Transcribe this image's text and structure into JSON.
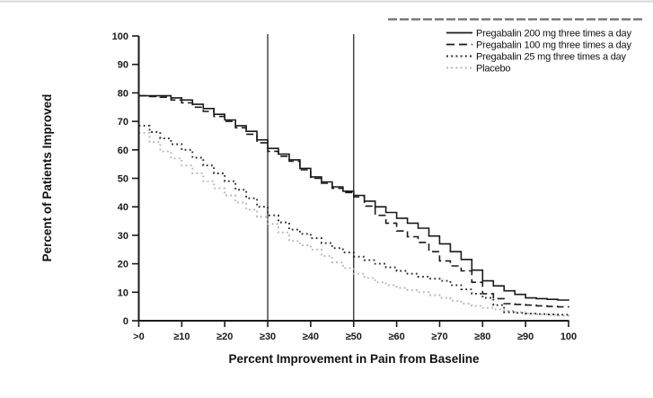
{
  "figure": {
    "background": "#ffffff",
    "axis_color": "#1a1a1a",
    "reference_line_color": "#2a2a2a"
  },
  "chart_data": {
    "type": "line",
    "title": "",
    "xlabel": "Percent Improvement in Pain from Baseline",
    "ylabel": "Percent of Patients Improved",
    "xlim": [
      0,
      100
    ],
    "ylim": [
      0,
      100
    ],
    "grid": false,
    "legend_position": "top-right",
    "x_tick_labels": [
      ">0",
      "≥10",
      "≥20",
      "≥30",
      "≥40",
      "≥50",
      "≥60",
      "≥70",
      "≥80",
      "≥90",
      "100"
    ],
    "x_tick_values": [
      0,
      10,
      20,
      30,
      40,
      50,
      60,
      70,
      80,
      90,
      100
    ],
    "y_tick_labels": [
      "0",
      "10",
      "20",
      "30",
      "40",
      "50",
      "60",
      "70",
      "80",
      "90",
      "100"
    ],
    "y_tick_values": [
      0,
      10,
      20,
      30,
      40,
      50,
      60,
      70,
      80,
      90,
      100
    ],
    "reference_lines_x": [
      30,
      50
    ],
    "x": [
      0,
      5,
      10,
      15,
      20,
      25,
      30,
      35,
      40,
      45,
      50,
      55,
      60,
      65,
      70,
      75,
      80,
      85,
      90,
      95,
      100
    ],
    "series": [
      {
        "name": "Pregabalin 200 mg three times a day",
        "style": "solid",
        "color": "#1a1a1a",
        "values": [
          79,
          79,
          77.5,
          74.5,
          70.5,
          66.5,
          60.5,
          56.5,
          50.5,
          47,
          44,
          40,
          36,
          32.5,
          27,
          21.5,
          14,
          10.5,
          8,
          7.5,
          7
        ]
      },
      {
        "name": "Pregabalin 100 mg three times a day",
        "style": "dashed",
        "color": "#1a1a1a",
        "values": [
          79,
          78.5,
          76.5,
          73.5,
          70,
          65.5,
          59.5,
          56,
          50,
          46.5,
          43.5,
          37,
          31.5,
          27.5,
          21,
          17.5,
          9.5,
          6,
          5.5,
          5,
          4.7
        ]
      },
      {
        "name": "Pregabalin 25 mg three times a day",
        "style": "dotted",
        "color": "#2a2a2a",
        "values": [
          68.5,
          64,
          60,
          54.5,
          49,
          43,
          37,
          32,
          29,
          25.5,
          22.5,
          20,
          17.5,
          15.5,
          14,
          11,
          8,
          3,
          2.5,
          2.2,
          2
        ]
      },
      {
        "name": "Placebo",
        "style": "dotted",
        "color": "#b5b5b5",
        "values": [
          66,
          59.5,
          54.5,
          49,
          44,
          39,
          34,
          28,
          25,
          20.5,
          16.5,
          13.5,
          11.5,
          10,
          8,
          6,
          4.5,
          3.5,
          2.5,
          2,
          1.5
        ]
      }
    ]
  }
}
